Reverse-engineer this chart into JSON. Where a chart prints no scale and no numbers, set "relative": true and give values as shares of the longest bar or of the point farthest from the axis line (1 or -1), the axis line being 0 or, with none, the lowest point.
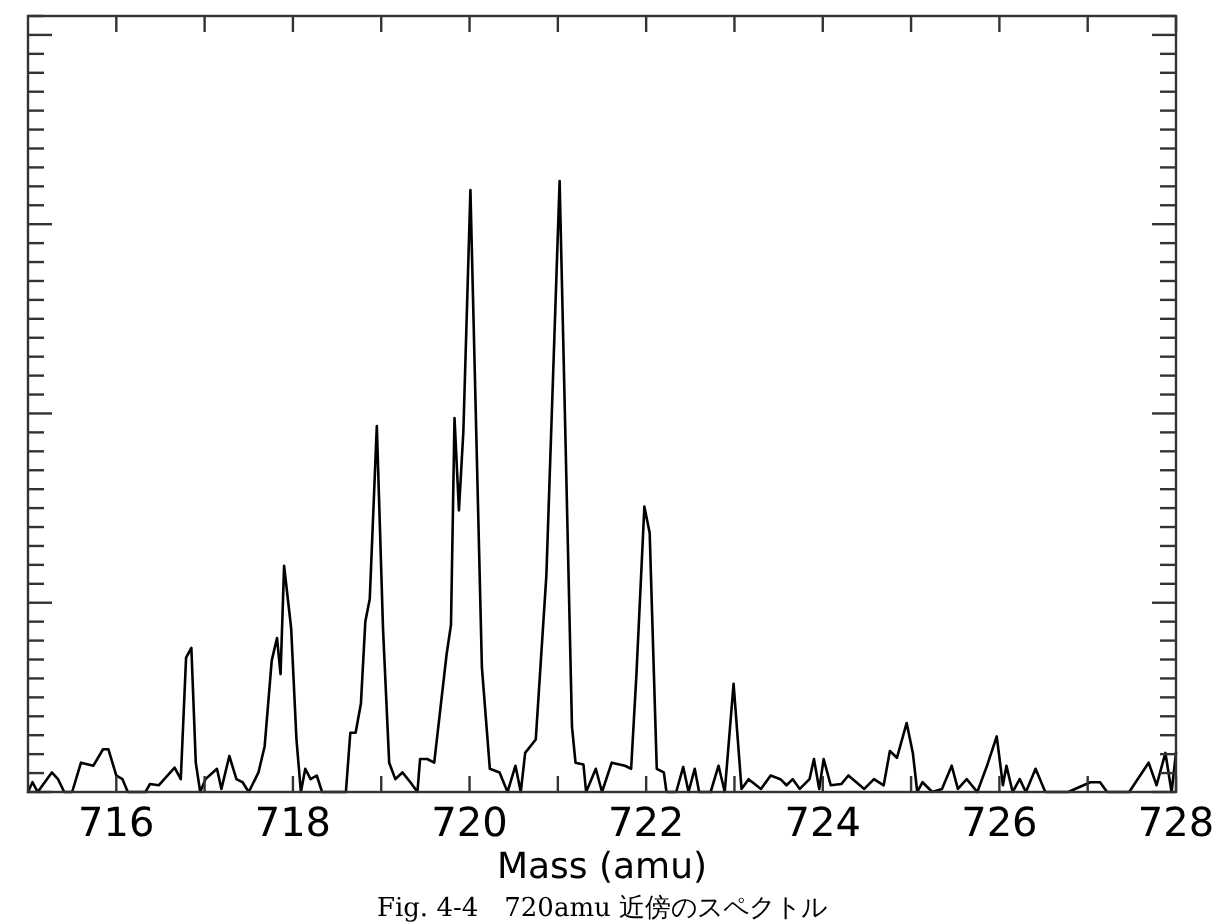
{
  "chart_data": {
    "type": "line",
    "relative": true,
    "xlabel": "Mass (amu)",
    "annotations": [
      "Fig. 4-4　720amu 近傍のスペクトル"
    ],
    "xlim": [
      715,
      728
    ],
    "xticks": [
      716,
      {
        "value": 717,
        "label": null
      },
      718,
      {
        "value": 719,
        "label": null
      },
      720,
      {
        "value": 721,
        "label": null
      },
      722,
      {
        "value": 723,
        "label": null
      },
      724,
      {
        "value": 725,
        "label": null
      },
      726,
      {
        "value": 727,
        "label": null
      },
      728
    ],
    "grid": false,
    "series": [
      {
        "color": "#000000",
        "x": [
          715.0,
          715.05,
          715.11,
          715.27,
          715.34,
          715.41,
          715.5,
          715.6,
          715.74,
          715.85,
          715.91,
          716.0,
          716.07,
          716.13,
          716.33,
          716.38,
          716.48,
          716.66,
          716.73,
          716.79,
          716.85,
          716.9,
          716.95,
          717.01,
          717.14,
          717.19,
          717.28,
          717.36,
          717.43,
          717.5,
          717.61,
          717.68,
          717.76,
          717.82,
          717.86,
          717.9,
          717.98,
          718.04,
          718.09,
          718.14,
          718.2,
          718.27,
          718.33,
          718.6,
          718.65,
          718.71,
          718.77,
          718.82,
          718.87,
          718.95,
          719.02,
          719.09,
          719.16,
          719.24,
          719.33,
          719.41,
          719.44,
          719.52,
          719.6,
          719.74,
          719.79,
          719.83,
          719.88,
          719.93,
          720.01,
          720.14,
          720.23,
          720.34,
          720.43,
          720.52,
          720.58,
          720.63,
          720.75,
          720.87,
          721.02,
          721.16,
          721.2,
          721.29,
          721.32,
          721.43,
          721.5,
          721.61,
          721.76,
          721.83,
          721.89,
          721.98,
          722.04,
          722.12,
          722.2,
          722.23,
          722.34,
          722.42,
          722.48,
          722.55,
          722.6,
          722.73,
          722.82,
          722.89,
          722.99,
          723.08,
          723.16,
          723.3,
          723.41,
          723.52,
          723.59,
          723.66,
          723.74,
          723.85,
          723.9,
          723.96,
          724.01,
          724.09,
          724.21,
          724.29,
          724.47,
          724.58,
          724.69,
          724.76,
          724.84,
          724.95,
          725.02,
          725.07,
          725.13,
          725.24,
          725.35,
          725.46,
          725.53,
          725.63,
          725.75,
          725.86,
          725.97,
          726.04,
          726.08,
          726.15,
          726.23,
          726.3,
          726.41,
          726.52,
          726.78,
          727.03,
          727.14,
          727.22,
          727.47,
          727.69,
          727.78,
          727.88,
          727.95,
          728.0
        ],
        "values": [
          0,
          0.016,
          0,
          0.032,
          0.021,
          0,
          0,
          0.048,
          0.043,
          0.07,
          0.07,
          0.027,
          0.021,
          0,
          0,
          0.013,
          0.011,
          0.04,
          0.021,
          0.22,
          0.236,
          0.048,
          0,
          0.021,
          0.038,
          0.005,
          0.059,
          0.021,
          0.016,
          0,
          0.032,
          0.075,
          0.215,
          0.252,
          0.193,
          0.37,
          0.268,
          0.086,
          0,
          0.038,
          0.021,
          0.027,
          0,
          0,
          0.097,
          0.097,
          0.145,
          0.279,
          0.316,
          0.599,
          0.268,
          0.048,
          0.021,
          0.032,
          0.016,
          0,
          0.054,
          0.054,
          0.048,
          0.225,
          0.274,
          0.612,
          0.461,
          0.59,
          0.985,
          0.204,
          0.038,
          0.032,
          0,
          0.043,
          0,
          0.064,
          0.086,
          0.354,
          1,
          0.107,
          0.048,
          0.045,
          0,
          0.038,
          0,
          0.048,
          0.043,
          0.038,
          0.193,
          0.467,
          0.424,
          0.038,
          0.032,
          0,
          0,
          0.041,
          0,
          0.038,
          0,
          0,
          0.043,
          0,
          0.177,
          0.005,
          0.021,
          0.005,
          0.027,
          0.021,
          0.011,
          0.021,
          0.005,
          0.021,
          0.054,
          0.005,
          0.054,
          0.011,
          0.013,
          0.027,
          0.005,
          0.021,
          0.011,
          0.067,
          0.056,
          0.113,
          0.064,
          0,
          0.016,
          0,
          0.005,
          0.043,
          0.005,
          0.021,
          0,
          0.043,
          0.091,
          0.011,
          0.043,
          0,
          0.021,
          0,
          0.038,
          0,
          0,
          0.016,
          0.016,
          0,
          0,
          0.048,
          0.011,
          0.064,
          0,
          0.064
        ]
      }
    ]
  }
}
